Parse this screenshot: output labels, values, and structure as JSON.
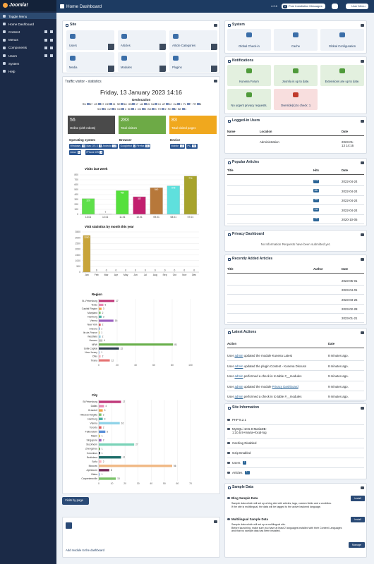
{
  "sidebar": {
    "logo": "Joomla!",
    "items": [
      "Toggle Menu",
      "Home Dashboard",
      "Content",
      "Menus",
      "Components",
      "Users",
      "System",
      "Help"
    ]
  },
  "header": {
    "title": "Home Dashboard",
    "version": "4.2.6",
    "notification_count": 0,
    "post_install": "Post Installation Messages",
    "user_menu": "User Menu"
  },
  "site": {
    "title": "Site",
    "tiles": [
      "Users",
      "Articles",
      "Article Categories",
      "Media",
      "Modules",
      "Plugins"
    ]
  },
  "stats": {
    "title": "Traffic visitor - statistics",
    "date": "Friday, 13 January 2023 14:16",
    "geo_title": "Geolocation",
    "geo": [
      {
        "code": "RU",
        "count": 67
      },
      {
        "code": "US",
        "count": 37
      },
      {
        "code": "DE",
        "count": 21
      },
      {
        "code": "SE",
        "count": 18
      },
      {
        "code": "GB",
        "count": 17
      },
      {
        "code": "UA",
        "count": 15
      },
      {
        "code": "NL",
        "count": 13
      },
      {
        "code": "AT",
        "count": 12
      },
      {
        "code": "CA",
        "count": 9
      },
      {
        "code": "PL",
        "count": 7
      },
      {
        "code": "FR",
        "count": 6
      },
      {
        "code": "SG",
        "count": 5
      },
      {
        "code": "CZ",
        "count": 5
      },
      {
        "code": "NO",
        "count": 4
      },
      {
        "code": "SK",
        "count": 4
      },
      {
        "code": "CN",
        "count": 3
      },
      {
        "code": "BG",
        "count": 3
      },
      {
        "code": "TH",
        "count": 2
      },
      {
        "code": "RO",
        "count": 2
      },
      {
        "code": "BE",
        "count": 1
      }
    ],
    "boxes": [
      {
        "value": 56,
        "label": "Online (with robots)"
      },
      {
        "value": 283,
        "label": "Total visitors"
      },
      {
        "value": 83,
        "label": "Total visited pages"
      }
    ],
    "os_title": "Operating system",
    "os": [
      {
        "name": "Windows",
        "count": 56
      },
      {
        "name": "Mac OS X",
        "count": 8
      },
      {
        "name": "Android",
        "count": 12
      },
      {
        "name": "Linux",
        "count": 5
      },
      {
        "name": "iPhone OS",
        "count": 1
      }
    ],
    "browser_title": "Browser",
    "browser": [
      {
        "name": "Googlebot",
        "count": 27
      },
      {
        "name": "Firefox",
        "count": 11
      }
    ],
    "device_title": "Device",
    "device": [
      {
        "name": "Mobile",
        "count": 13
      },
      {
        "name": "PC",
        "count": 98
      }
    ],
    "visits_by_page": "Visits by page"
  },
  "chart_data": [
    {
      "type": "bar",
      "title": "Visits last week",
      "categories": [
        "13.01",
        "12.01",
        "11.01",
        "10.01",
        "09.01",
        "08.01",
        "07.01"
      ],
      "values": [
        320,
        7,
        480,
        357,
        540,
        578,
        774
      ],
      "colors": [
        "#5ee04a",
        "#ffffff",
        "#55e03c",
        "#c21f6e",
        "#b7783a",
        "#5fe0dd",
        "#a7a32c"
      ],
      "ylim": [
        0,
        800
      ],
      "yticks": [
        0,
        100,
        200,
        300,
        400,
        500,
        600,
        700,
        800
      ],
      "grid": true
    },
    {
      "type": "bar",
      "title": "Visit statistics by month this year",
      "categories": [
        "Jan",
        "Feb",
        "Mar",
        "Apr",
        "May",
        "Jun",
        "Jul",
        "Aug",
        "Sep",
        "Oct",
        "Nov",
        "Dec"
      ],
      "values": [
        3200,
        0,
        0,
        0,
        0,
        0,
        0,
        0,
        0,
        0,
        0,
        0
      ],
      "colors": [
        "#c8a43a",
        "#c8a43a",
        "#c8a43a",
        "#c8a43a",
        "#c8a43a",
        "#c8a43a",
        "#c8a43a",
        "#c8a43a",
        "#c8a43a",
        "#c8a43a",
        "#c8a43a",
        "#c8a43a"
      ],
      "ylim": [
        0,
        3500
      ],
      "yticks": [
        0,
        500,
        1000,
        1500,
        2000,
        2500,
        3000,
        3500
      ],
      "grid": true
    },
    {
      "type": "hbar",
      "title": "Region",
      "categories": [
        "St.-Petersburg",
        "Texas",
        "Capital Region",
        "Maryland",
        "Hamburg",
        "Vienna",
        "New York",
        "Arizona",
        "Ile-de-France",
        "Westfield",
        "Hessen",
        "NRW",
        "Sofia-Capital",
        "New Jersey",
        "Ohio",
        "Tirana"
      ],
      "values": [
        17,
        5,
        3,
        2,
        3,
        16,
        2,
        1,
        1,
        2,
        4,
        81,
        22,
        1,
        2,
        12
      ],
      "colors": [
        "#c0397a",
        "#e98bb5",
        "#f2a34a",
        "#7cc36b",
        "#4bb1a5",
        "#9b5fc0",
        "#e05c5c",
        "#5a8fd8",
        "#d9d354",
        "#8fd3e8",
        "#c2c2c2",
        "#6ab04c",
        "#2d3e50",
        "#a0c4ff",
        "#ffb3c1",
        "#e57373"
      ],
      "xlim": [
        0,
        100
      ],
      "xticks": [
        0,
        20,
        40,
        60,
        80,
        100
      ],
      "grid": true
    },
    {
      "type": "hbar",
      "title": "City",
      "categories": [
        "St Petersburg",
        "Dallas",
        "Grasdorf",
        "Hillcrest Heights",
        "Hamburg",
        "Vienna",
        "Toronto",
        "Falkenstein",
        "Miami",
        "Singapore",
        "Stockholm",
        "Zhengzhou",
        "Columbus",
        "Bratislava",
        "Sofia",
        "Moscow",
        "Apeldoorn",
        "Otaka",
        "Carpentersville"
      ],
      "values": [
        17,
        4,
        3,
        2,
        3,
        16,
        2,
        5,
        1,
        2,
        27,
        1,
        1,
        17,
        2,
        56,
        8,
        1,
        13
      ],
      "colors": [
        "#c0397a",
        "#e98bb5",
        "#f2a34a",
        "#7cc36b",
        "#4bb1a5",
        "#8fd3e8",
        "#e05c5c",
        "#5a8fd8",
        "#d9d354",
        "#9b5fc0",
        "#7ad3b8",
        "#6ab04c",
        "#2d3e50",
        "#1f6f6a",
        "#ffb3c1",
        "#f0b884",
        "#7a2a5a",
        "#a0c4ff",
        "#7cc36b"
      ],
      "xlim": [
        0,
        70
      ],
      "xticks": [
        0,
        10,
        20,
        30,
        40,
        50,
        60,
        70
      ],
      "grid": true
    }
  ],
  "add_module": "Add module to the dashboard",
  "system": {
    "title": "System",
    "tiles": [
      "Global Check-in",
      "Cache",
      "Global Configuration"
    ]
  },
  "notifications": {
    "title": "Notifications",
    "tiles": [
      {
        "label": "Kunena Forum",
        "state": "ok"
      },
      {
        "label": "Joomla is up to date.",
        "state": "ok"
      },
      {
        "label": "Extensions are up to date.",
        "state": "ok"
      },
      {
        "label": "No urgent privacy requests.",
        "state": "ok"
      },
      {
        "label": "Override(s) to check: 1",
        "state": "warn"
      }
    ]
  },
  "logged_in": {
    "title": "Logged-in Users",
    "headers": [
      "Name",
      "Location",
      "Date"
    ],
    "rows": [
      {
        "location": "Administration",
        "date": "2023-01-13 14:16"
      }
    ]
  },
  "popular": {
    "title": "Popular Articles",
    "headers": [
      "Title",
      "Hits",
      "Date"
    ],
    "rows": [
      {
        "hits": 474,
        "date": "2022-04-24"
      },
      {
        "hits": 381,
        "date": "2022-04-24"
      },
      {
        "hits": 364,
        "date": "2022-04-24"
      },
      {
        "hits": 312,
        "date": "2022-04-24"
      },
      {
        "hits": 243,
        "date": "2020-10-05"
      }
    ]
  },
  "privacy": {
    "title": "Privacy Dashboard",
    "message": "No Information Requests have been submitted yet."
  },
  "recent": {
    "title": "Recently Added Articles",
    "headers": [
      "Title",
      "Author",
      "Date"
    ],
    "dates": [
      "2023-05-01",
      "2023-04-01",
      "2023-03-26",
      "2023-02-28",
      "2023-01-21"
    ]
  },
  "actions": {
    "title": "Latest Actions",
    "headers": [
      "Action",
      "Date"
    ],
    "prefix": "User",
    "rows": [
      {
        "user": "admin",
        "text": "updated the module Kunena Latest",
        "date": "8 minutes ago."
      },
      {
        "user": "admin",
        "text": "updated the plugin Content - Kunena Discuss",
        "date": "8 minutes ago."
      },
      {
        "user": "admin",
        "text": "performed a check in to table #__modules",
        "date": "9 minutes ago."
      },
      {
        "user": "admin",
        "text": "updated the module",
        "link": "Privacy Dashboard",
        "date": "9 minutes ago."
      },
      {
        "user": "admin",
        "text": "performed a check in to table #__modules",
        "date": "9 minutes ago."
      }
    ]
  },
  "site_info": {
    "title": "Site Information",
    "php": "PHP 8.2.1",
    "db": "MySQLi 10.5.9-MariaDB-1:10.5.9+maria~focal-log",
    "caching": "Caching Disabled",
    "gzip": "Gzip Enabled",
    "users_label": "Users",
    "users": 1,
    "articles_label": "Articles",
    "articles": 41
  },
  "sample": {
    "title": "Sample Data",
    "install": "Install",
    "manage": "Manage",
    "items": [
      {
        "name": "Blog Sample Data",
        "desc": "Sample data which will set up a blog site with articles, tags, custom fields and a workflow.",
        "note": "If the site is multilingual, the data will be tagged to the active backend language."
      },
      {
        "name": "Multilingual Sample Data",
        "desc": "Sample data which will set up a multilingual site.",
        "note": "Before launching, make sure you have at least 2 languages installed with their Content Languages and that no sample data has been installed."
      }
    ]
  }
}
